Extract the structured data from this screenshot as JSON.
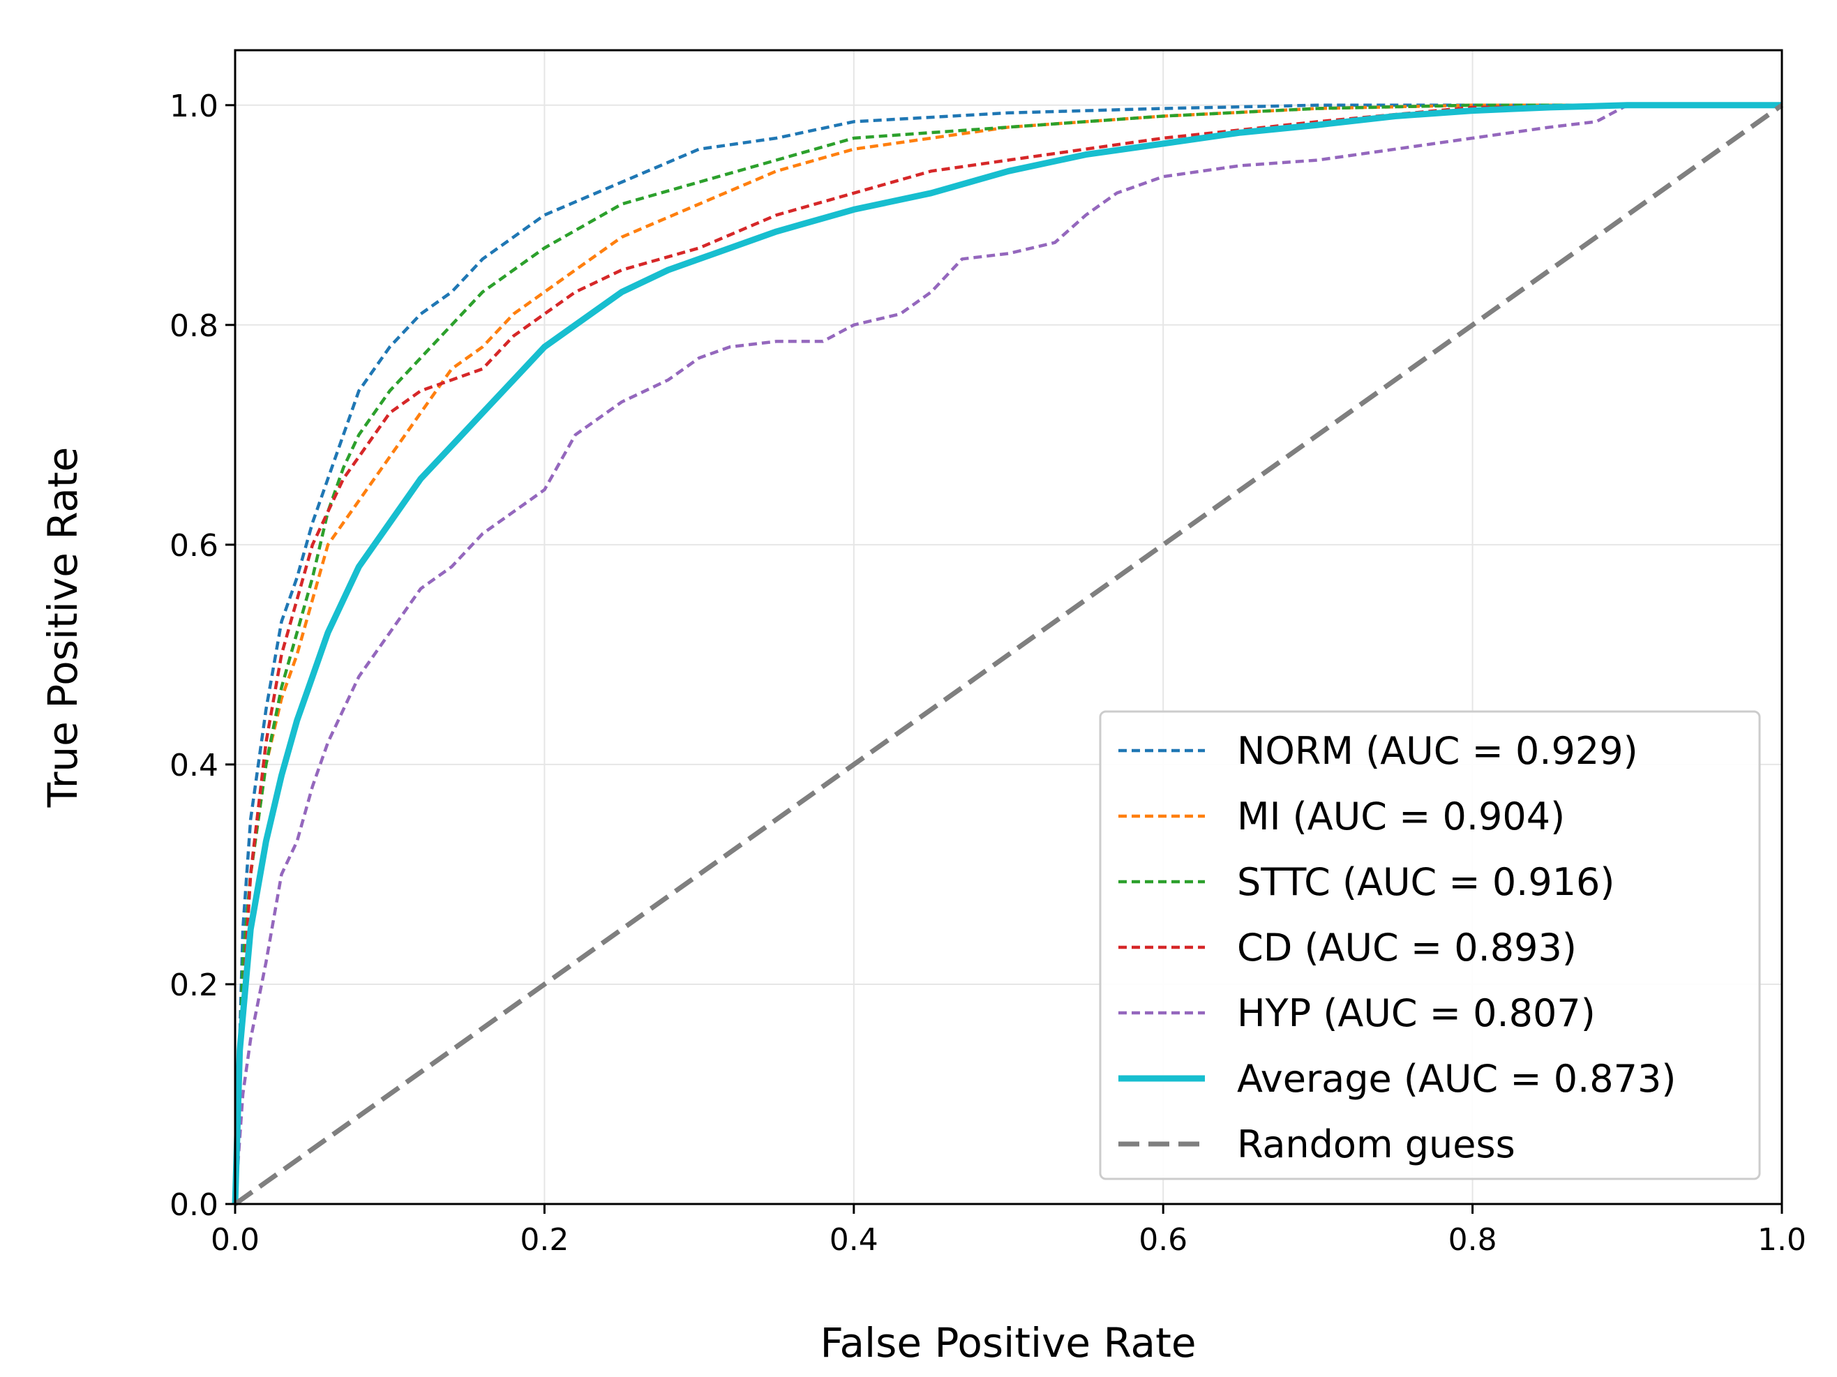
{
  "chart_data": {
    "type": "line",
    "title": "",
    "xlabel": "False Positive Rate",
    "ylabel": "True Positive Rate",
    "xlim": [
      0.0,
      1.0
    ],
    "ylim": [
      0.0,
      1.05
    ],
    "xticks": [
      "0.0",
      "0.2",
      "0.4",
      "0.6",
      "0.8",
      "1.0"
    ],
    "yticks": [
      "0.0",
      "0.2",
      "0.4",
      "0.6",
      "0.8",
      "1.0"
    ],
    "grid": true,
    "legend_position": "lower-right",
    "series": [
      {
        "name": "NORM",
        "label": "NORM (AUC = 0.929)",
        "color": "#1f77b4",
        "style": "dashed",
        "x": [
          0,
          0.005,
          0.01,
          0.02,
          0.03,
          0.04,
          0.05,
          0.06,
          0.07,
          0.08,
          0.1,
          0.12,
          0.14,
          0.16,
          0.18,
          0.2,
          0.25,
          0.3,
          0.35,
          0.4,
          0.5,
          0.6,
          0.7,
          0.8,
          0.9,
          1.0
        ],
        "y": [
          0,
          0.25,
          0.35,
          0.45,
          0.53,
          0.57,
          0.62,
          0.66,
          0.7,
          0.74,
          0.78,
          0.81,
          0.83,
          0.86,
          0.88,
          0.9,
          0.93,
          0.96,
          0.97,
          0.985,
          0.993,
          0.997,
          1.0,
          1.0,
          1.0,
          1.0
        ]
      },
      {
        "name": "MI",
        "label": "MI (AUC = 0.904)",
        "color": "#ff7f0e",
        "style": "dashed",
        "x": [
          0,
          0.005,
          0.01,
          0.02,
          0.03,
          0.04,
          0.05,
          0.06,
          0.08,
          0.1,
          0.12,
          0.14,
          0.16,
          0.18,
          0.2,
          0.22,
          0.25,
          0.3,
          0.35,
          0.4,
          0.45,
          0.5,
          0.6,
          0.7,
          0.8,
          1.0
        ],
        "y": [
          0,
          0.2,
          0.3,
          0.4,
          0.46,
          0.5,
          0.55,
          0.6,
          0.64,
          0.68,
          0.72,
          0.76,
          0.78,
          0.81,
          0.83,
          0.85,
          0.88,
          0.91,
          0.94,
          0.96,
          0.97,
          0.98,
          0.99,
          0.997,
          1.0,
          1.0
        ]
      },
      {
        "name": "STTC",
        "label": "STTC (AUC = 0.916)",
        "color": "#2ca02c",
        "style": "dashed",
        "x": [
          0,
          0.005,
          0.01,
          0.02,
          0.03,
          0.04,
          0.05,
          0.06,
          0.07,
          0.08,
          0.1,
          0.12,
          0.14,
          0.16,
          0.18,
          0.2,
          0.25,
          0.3,
          0.35,
          0.4,
          0.45,
          0.5,
          0.6,
          0.7,
          0.8,
          1.0
        ],
        "y": [
          0,
          0.22,
          0.3,
          0.4,
          0.47,
          0.52,
          0.57,
          0.63,
          0.67,
          0.7,
          0.74,
          0.77,
          0.8,
          0.83,
          0.85,
          0.87,
          0.91,
          0.93,
          0.95,
          0.97,
          0.975,
          0.98,
          0.99,
          0.997,
          1.0,
          1.0
        ]
      },
      {
        "name": "CD",
        "label": "CD (AUC = 0.893)",
        "color": "#d62728",
        "style": "dashed",
        "x": [
          0,
          0.005,
          0.01,
          0.02,
          0.03,
          0.04,
          0.05,
          0.06,
          0.07,
          0.08,
          0.1,
          0.12,
          0.14,
          0.16,
          0.18,
          0.2,
          0.22,
          0.25,
          0.3,
          0.35,
          0.4,
          0.45,
          0.5,
          0.6,
          0.7,
          0.8,
          1.0
        ],
        "y": [
          0,
          0.18,
          0.3,
          0.42,
          0.5,
          0.55,
          0.6,
          0.63,
          0.66,
          0.68,
          0.72,
          0.74,
          0.75,
          0.76,
          0.79,
          0.81,
          0.83,
          0.85,
          0.87,
          0.9,
          0.92,
          0.94,
          0.95,
          0.97,
          0.985,
          0.998,
          1.0
        ]
      },
      {
        "name": "HYP",
        "label": "HYP (AUC = 0.807)",
        "color": "#9467bd",
        "style": "dashed",
        "x": [
          0,
          0.005,
          0.01,
          0.02,
          0.03,
          0.04,
          0.05,
          0.06,
          0.07,
          0.08,
          0.1,
          0.11,
          0.12,
          0.14,
          0.16,
          0.18,
          0.2,
          0.22,
          0.25,
          0.28,
          0.3,
          0.32,
          0.35,
          0.38,
          0.4,
          0.43,
          0.45,
          0.47,
          0.5,
          0.53,
          0.55,
          0.57,
          0.6,
          0.65,
          0.7,
          0.75,
          0.8,
          0.85,
          0.88,
          0.9,
          1.0
        ],
        "y": [
          0,
          0.1,
          0.15,
          0.22,
          0.3,
          0.33,
          0.38,
          0.42,
          0.45,
          0.48,
          0.52,
          0.54,
          0.56,
          0.58,
          0.61,
          0.63,
          0.65,
          0.7,
          0.73,
          0.75,
          0.77,
          0.78,
          0.785,
          0.785,
          0.8,
          0.81,
          0.83,
          0.86,
          0.865,
          0.875,
          0.9,
          0.92,
          0.935,
          0.945,
          0.95,
          0.96,
          0.97,
          0.98,
          0.985,
          1.0,
          1.0
        ]
      },
      {
        "name": "Average",
        "label": "Average (AUC = 0.873)",
        "color": "#17becf",
        "style": "solid",
        "x": [
          0,
          0.003,
          0.01,
          0.02,
          0.03,
          0.04,
          0.05,
          0.06,
          0.07,
          0.08,
          0.09,
          0.1,
          0.12,
          0.14,
          0.16,
          0.18,
          0.2,
          0.22,
          0.25,
          0.28,
          0.3,
          0.35,
          0.4,
          0.45,
          0.5,
          0.55,
          0.6,
          0.65,
          0.7,
          0.75,
          0.8,
          0.85,
          0.9,
          0.95,
          1.0
        ],
        "y": [
          0,
          0.14,
          0.25,
          0.33,
          0.39,
          0.44,
          0.48,
          0.52,
          0.55,
          0.58,
          0.6,
          0.62,
          0.66,
          0.69,
          0.72,
          0.75,
          0.78,
          0.8,
          0.83,
          0.85,
          0.86,
          0.885,
          0.905,
          0.92,
          0.94,
          0.955,
          0.965,
          0.975,
          0.982,
          0.99,
          0.995,
          0.998,
          1.0,
          1.0,
          1.0
        ]
      },
      {
        "name": "Random guess",
        "label": "Random guess",
        "color": "#7f7f7f",
        "style": "longdash",
        "x": [
          0,
          1
        ],
        "y": [
          0,
          1
        ]
      }
    ]
  }
}
